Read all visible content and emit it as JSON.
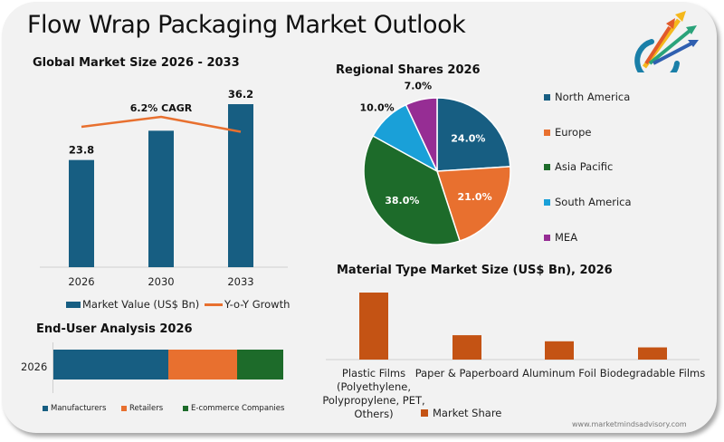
{
  "header": {
    "title": "Flow Wrap Packaging Market Outlook",
    "logo_icon": "arrows-growth-logo-icon"
  },
  "colors": {
    "market_value": "#175e82",
    "yoy_growth": "#e8702f",
    "north_america": "#175e82",
    "europe": "#e8702f",
    "asia_pacific": "#1d6b2a",
    "south_america": "#1aa0d8",
    "mea": "#962d94",
    "material": "#c45314",
    "card_bg": "#f2f2f2"
  },
  "footer": {
    "website": "www.marketmindsadvisory.com"
  },
  "chart_data": [
    {
      "id": "global-market-size",
      "type": "bar",
      "title": "Global Market Size 2026 - 2033",
      "categories": [
        "2026",
        "2030",
        "2033"
      ],
      "series": [
        {
          "name": "Market Value (US$ Bn)",
          "type": "bar",
          "values": [
            23.8,
            30.3,
            36.2
          ],
          "data_labels": [
            "23.8",
            "",
            "36.2"
          ]
        },
        {
          "name": "Y-o-Y Growth",
          "type": "line",
          "values": [
            6.0,
            6.4,
            5.8
          ]
        }
      ],
      "annotation": "6.2% CAGR",
      "ylim": [
        0,
        36.2
      ],
      "grid": false,
      "legend": "bottom"
    },
    {
      "id": "regional-shares",
      "type": "pie",
      "title": "Regional Shares 2026",
      "categories": [
        "North America",
        "Europe",
        "Asia Pacific",
        "South America",
        "MEA"
      ],
      "values": [
        24.0,
        21.0,
        38.0,
        10.0,
        7.0
      ],
      "data_labels": [
        "24.0%",
        "21.0%",
        "38.0%",
        "10.0%",
        "7.0%"
      ],
      "legend": "right"
    },
    {
      "id": "end-user-analysis",
      "type": "bar",
      "orientation": "horizontal-stacked",
      "title": "End-User Analysis 2026",
      "categories": [
        "2026"
      ],
      "series": [
        {
          "name": "Manufacturers",
          "values": [
            50
          ]
        },
        {
          "name": "Retailers",
          "values": [
            30
          ]
        },
        {
          "name": "E-commerce Companies",
          "values": [
            20
          ]
        }
      ],
      "legend": "bottom"
    },
    {
      "id": "material-type",
      "type": "bar",
      "title": "Material Type Market Size (US$ Bn), 2026",
      "categories": [
        "Plastic Films (Polyethylene, Polypropylene, PET, Others)",
        "Paper & Paperboard",
        "Aluminum Foil",
        "Biodegradable Films"
      ],
      "category_lines": [
        [
          "Plastic Films",
          "(Polyethylene,",
          "Polypropylene, PET,",
          "Others)"
        ],
        [
          "Paper & Paperboard"
        ],
        [
          "Aluminum Foil"
        ],
        [
          "Biodegradable Films"
        ]
      ],
      "series": [
        {
          "name": "Market Share",
          "values": [
            55,
            20,
            15,
            10
          ]
        }
      ],
      "legend": "bottom"
    }
  ]
}
